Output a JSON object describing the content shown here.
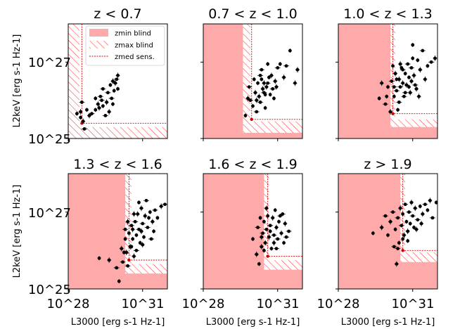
{
  "chart_data": {
    "type": "scatter",
    "xscale": "log",
    "yscale": "log",
    "xlim": [
      1e+28,
      1e+32
    ],
    "ylim": [
      1e+25,
      1e+28
    ],
    "xticks": [
      "10^28",
      "10^31"
    ],
    "yticks": [
      "10^25",
      "10^27"
    ],
    "xlabel": "L3000 [erg s-1 Hz-1]",
    "ylabel": "L2keV [erg s-1 Hz-1]",
    "legend": {
      "placement": "top-right of first panel",
      "entries": [
        {
          "label": "zmin blind",
          "style": "fill",
          "color": "#ffaaaa"
        },
        {
          "label": "zmax blind",
          "style": "hatch",
          "color": "#ff4444"
        },
        {
          "label": "zmed sens.",
          "style": "dotted-line",
          "color": "#dd0000"
        }
      ]
    },
    "colors": {
      "zmin_fill": "#ffaaaa",
      "zmax_hatch": "#ff3b3b",
      "zmed_line": "#d00000",
      "points": "#000000"
    },
    "panels": [
      {
        "title": "z < 0.7",
        "zmin_blind": {
          "x": 28.0,
          "y": 25.0
        },
        "zmax_blind": {
          "x": 28.45,
          "y": 25.3
        },
        "zmed": {
          "x": 28.55,
          "y": 25.4
        },
        "points": [
          [
            28.35,
            25.65
          ],
          [
            28.5,
            25.7
          ],
          [
            28.55,
            25.95
          ],
          [
            28.5,
            25.55
          ],
          [
            28.6,
            25.45
          ],
          [
            28.65,
            25.25
          ],
          [
            28.75,
            25.75
          ],
          [
            28.85,
            25.6
          ],
          [
            28.95,
            25.65
          ],
          [
            29.1,
            25.75
          ],
          [
            29.2,
            25.9
          ],
          [
            29.3,
            26.1
          ],
          [
            29.1,
            26.05
          ],
          [
            29.25,
            25.8
          ],
          [
            29.4,
            26.3
          ],
          [
            29.4,
            25.85
          ],
          [
            29.55,
            25.95
          ],
          [
            29.6,
            26.2
          ],
          [
            29.7,
            26.4
          ],
          [
            29.8,
            26.5
          ],
          [
            29.75,
            26.05
          ],
          [
            29.85,
            26.25
          ],
          [
            29.9,
            26.45
          ],
          [
            29.95,
            26.55
          ],
          [
            30.0,
            26.3
          ],
          [
            29.65,
            25.7
          ],
          [
            29.5,
            25.6
          ],
          [
            29.8,
            25.9
          ],
          [
            30.0,
            26.65
          ],
          [
            29.35,
            26.0
          ]
        ]
      },
      {
        "title": "0.7 < z < 1.0",
        "zmin_blind": {
          "x": 29.6,
          "y": 25.15
        },
        "zmax_blind": {
          "x": 29.9,
          "y": 25.45
        },
        "zmed": {
          "x": 29.95,
          "y": 25.5
        },
        "points": [
          [
            29.7,
            25.6
          ],
          [
            29.8,
            26.05
          ],
          [
            29.9,
            26.0
          ],
          [
            30.0,
            25.85
          ],
          [
            30.1,
            26.2
          ],
          [
            30.15,
            25.7
          ],
          [
            30.2,
            26.45
          ],
          [
            30.25,
            26.1
          ],
          [
            30.3,
            25.95
          ],
          [
            30.35,
            26.55
          ],
          [
            30.4,
            26.3
          ],
          [
            30.45,
            26.2
          ],
          [
            30.5,
            25.8
          ],
          [
            30.55,
            26.35
          ],
          [
            30.6,
            26.45
          ],
          [
            30.7,
            26.15
          ],
          [
            30.75,
            26.65
          ],
          [
            30.8,
            26.3
          ],
          [
            30.85,
            26.05
          ],
          [
            30.9,
            26.5
          ],
          [
            31.0,
            26.85
          ],
          [
            31.1,
            26.95
          ],
          [
            31.25,
            26.6
          ],
          [
            31.35,
            26.9
          ],
          [
            31.5,
            27.3
          ],
          [
            31.7,
            26.45
          ],
          [
            32.2,
            26.95
          ],
          [
            30.05,
            26.55
          ],
          [
            30.15,
            26.0
          ],
          [
            30.35,
            26.8
          ],
          [
            30.6,
            26.95
          ],
          [
            30.95,
            26.35
          ],
          [
            30.3,
            26.65
          ],
          [
            30.5,
            26.15
          ],
          [
            30.45,
            26.45
          ],
          [
            29.85,
            26.35
          ],
          [
            30.65,
            26.6
          ],
          [
            31.8,
            26.8
          ]
        ]
      },
      {
        "title": "1.0 < z < 1.3",
        "zmin_blind": {
          "x": 30.1,
          "y": 25.3
        },
        "zmax_blind": {
          "x": 30.3,
          "y": 25.5
        },
        "zmed": {
          "x": 30.2,
          "y": 25.65
        },
        "points": [
          [
            29.65,
            26.05
          ],
          [
            29.75,
            26.45
          ],
          [
            29.9,
            25.9
          ],
          [
            30.0,
            26.35
          ],
          [
            30.1,
            25.7
          ],
          [
            30.15,
            26.5
          ],
          [
            30.25,
            26.1
          ],
          [
            30.3,
            26.7
          ],
          [
            30.35,
            26.25
          ],
          [
            30.4,
            25.75
          ],
          [
            30.45,
            26.55
          ],
          [
            30.5,
            26.35
          ],
          [
            30.55,
            26.85
          ],
          [
            30.6,
            26.45
          ],
          [
            30.65,
            26.1
          ],
          [
            30.7,
            26.7
          ],
          [
            30.75,
            26.4
          ],
          [
            30.8,
            26.95
          ],
          [
            30.85,
            26.6
          ],
          [
            30.9,
            26.2
          ],
          [
            30.95,
            26.85
          ],
          [
            31.0,
            27.1
          ],
          [
            31.05,
            26.65
          ],
          [
            31.1,
            26.4
          ],
          [
            31.2,
            27.05
          ],
          [
            31.3,
            26.8
          ],
          [
            31.4,
            27.3
          ],
          [
            31.6,
            26.9
          ],
          [
            31.9,
            27.1
          ],
          [
            32.1,
            27.05
          ],
          [
            32.5,
            27.6
          ],
          [
            31.5,
            26.55
          ],
          [
            31.75,
            27.0
          ],
          [
            30.2,
            26.9
          ],
          [
            30.5,
            26.95
          ],
          [
            30.7,
            26.2
          ],
          [
            31.0,
            27.45
          ],
          [
            31.15,
            26.3
          ],
          [
            30.45,
            25.95
          ],
          [
            30.85,
            26.35
          ],
          [
            31.25,
            26.1
          ],
          [
            30.6,
            26.8
          ],
          [
            30.35,
            26.55
          ],
          [
            30.95,
            26.5
          ],
          [
            30.25,
            26.35
          ],
          [
            29.95,
            26.1
          ]
        ]
      },
      {
        "title": "1.3 < z < 1.6",
        "zmin_blind": {
          "x": 30.3,
          "y": 25.4
        },
        "zmax_blind": {
          "x": 30.55,
          "y": 25.65
        },
        "zmed": {
          "x": 30.45,
          "y": 25.75
        },
        "points": [
          [
            29.25,
            25.8
          ],
          [
            29.65,
            25.75
          ],
          [
            29.95,
            25.55
          ],
          [
            30.05,
            25.2
          ],
          [
            30.15,
            26.05
          ],
          [
            30.2,
            25.7
          ],
          [
            30.3,
            26.3
          ],
          [
            30.35,
            25.95
          ],
          [
            30.4,
            25.6
          ],
          [
            30.45,
            26.45
          ],
          [
            30.5,
            26.1
          ],
          [
            30.55,
            26.65
          ],
          [
            30.6,
            26.3
          ],
          [
            30.65,
            25.85
          ],
          [
            30.7,
            26.75
          ],
          [
            30.75,
            26.4
          ],
          [
            30.8,
            26.95
          ],
          [
            30.85,
            26.55
          ],
          [
            30.9,
            26.2
          ],
          [
            30.95,
            27.1
          ],
          [
            31.0,
            26.7
          ],
          [
            31.05,
            26.35
          ],
          [
            31.1,
            26.9
          ],
          [
            31.2,
            26.6
          ],
          [
            31.3,
            27.0
          ],
          [
            31.4,
            26.75
          ],
          [
            31.5,
            27.05
          ],
          [
            31.6,
            26.85
          ],
          [
            31.75,
            27.15
          ],
          [
            31.9,
            27.2
          ],
          [
            30.25,
            25.95
          ],
          [
            30.65,
            26.95
          ],
          [
            31.35,
            26.3
          ],
          [
            30.85,
            27.25
          ],
          [
            30.4,
            26.75
          ],
          [
            31.15,
            27.3
          ],
          [
            30.55,
            26.1
          ],
          [
            31.0,
            26.15
          ],
          [
            30.75,
            26.0
          ],
          [
            31.45,
            26.5
          ],
          [
            30.95,
            26.5
          ],
          [
            30.3,
            26.55
          ],
          [
            31.25,
            26.85
          ],
          [
            30.6,
            26.55
          ]
        ]
      },
      {
        "title": "1.6 < z < 1.9",
        "zmin_blind": {
          "x": 30.45,
          "y": 25.5
        },
        "zmax_blind": {
          "x": 30.65,
          "y": 25.75
        },
        "zmed": {
          "x": 30.6,
          "y": 25.85
        },
        "points": [
          [
            30.0,
            26.3
          ],
          [
            30.15,
            25.9
          ],
          [
            30.2,
            26.6
          ],
          [
            30.25,
            25.65
          ],
          [
            30.35,
            26.1
          ],
          [
            30.4,
            26.45
          ],
          [
            30.45,
            26.75
          ],
          [
            30.5,
            26.2
          ],
          [
            30.55,
            26.55
          ],
          [
            30.6,
            26.9
          ],
          [
            30.65,
            26.35
          ],
          [
            30.7,
            26.65
          ],
          [
            30.75,
            26.05
          ],
          [
            30.8,
            26.85
          ],
          [
            30.85,
            26.4
          ],
          [
            30.9,
            27.05
          ],
          [
            30.95,
            26.6
          ],
          [
            31.0,
            26.3
          ],
          [
            31.05,
            26.75
          ],
          [
            31.15,
            26.45
          ],
          [
            31.2,
            26.95
          ],
          [
            31.25,
            26.2
          ],
          [
            31.3,
            26.7
          ],
          [
            31.45,
            26.5
          ],
          [
            30.3,
            26.85
          ],
          [
            30.55,
            27.1
          ],
          [
            31.35,
            26.35
          ],
          [
            30.45,
            26.0
          ],
          [
            30.85,
            26.2
          ],
          [
            31.1,
            26.9
          ],
          [
            30.7,
            26.5
          ],
          [
            30.35,
            26.35
          ],
          [
            30.95,
            26.05
          ]
        ]
      },
      {
        "title": "z > 1.9",
        "zmin_blind": {
          "x": 30.5,
          "y": 25.7
        },
        "zmax_blind": {
          "x": 30.7,
          "y": 25.95
        },
        "zmed": {
          "x": 30.6,
          "y": 26.0
        },
        "points": [
          [
            29.4,
            26.45
          ],
          [
            29.75,
            26.6
          ],
          [
            29.9,
            26.9
          ],
          [
            30.0,
            26.4
          ],
          [
            30.1,
            26.75
          ],
          [
            30.2,
            27.0
          ],
          [
            30.3,
            26.55
          ],
          [
            30.35,
            25.65
          ],
          [
            30.4,
            26.85
          ],
          [
            30.45,
            26.2
          ],
          [
            30.5,
            27.1
          ],
          [
            30.55,
            26.65
          ],
          [
            30.6,
            26.95
          ],
          [
            30.65,
            26.4
          ],
          [
            30.7,
            27.2
          ],
          [
            30.75,
            26.75
          ],
          [
            30.8,
            26.5
          ],
          [
            30.85,
            27.0
          ],
          [
            30.9,
            26.7
          ],
          [
            30.95,
            27.25
          ],
          [
            31.0,
            26.9
          ],
          [
            31.05,
            26.6
          ],
          [
            31.1,
            27.1
          ],
          [
            31.2,
            26.8
          ],
          [
            31.3,
            27.15
          ],
          [
            31.4,
            26.95
          ],
          [
            31.5,
            27.2
          ],
          [
            31.6,
            27.05
          ],
          [
            31.7,
            27.3
          ],
          [
            31.8,
            26.85
          ],
          [
            31.95,
            27.25
          ],
          [
            31.15,
            26.55
          ],
          [
            30.4,
            26.05
          ],
          [
            30.6,
            26.3
          ],
          [
            31.35,
            26.7
          ],
          [
            30.25,
            26.1
          ],
          [
            30.8,
            26.25
          ]
        ]
      }
    ]
  }
}
